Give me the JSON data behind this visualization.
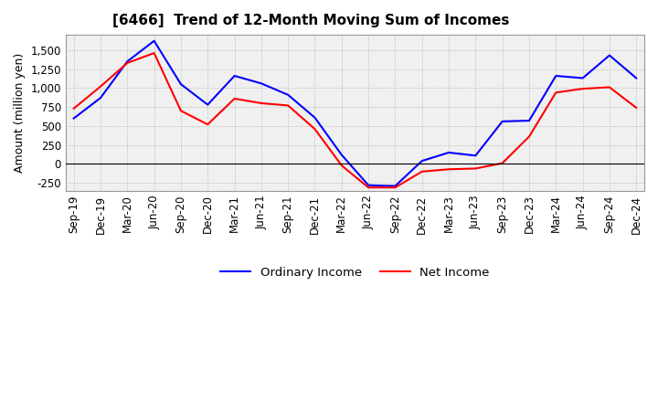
{
  "title": "[6466]  Trend of 12-Month Moving Sum of Incomes",
  "ylabel": "Amount (million yen)",
  "x_labels": [
    "Sep-19",
    "Dec-19",
    "Mar-20",
    "Jun-20",
    "Sep-20",
    "Dec-20",
    "Mar-21",
    "Jun-21",
    "Sep-21",
    "Dec-21",
    "Mar-22",
    "Jun-22",
    "Sep-22",
    "Dec-22",
    "Mar-23",
    "Jun-23",
    "Sep-23",
    "Dec-23",
    "Mar-24",
    "Jun-24",
    "Sep-24",
    "Dec-24"
  ],
  "ordinary_income": [
    600,
    870,
    1350,
    1620,
    1050,
    780,
    1160,
    1060,
    910,
    610,
    120,
    -280,
    -290,
    40,
    150,
    110,
    560,
    570,
    1160,
    1130,
    1430,
    1130
  ],
  "net_income": [
    730,
    1020,
    1330,
    1460,
    700,
    520,
    860,
    800,
    770,
    460,
    -20,
    -310,
    -310,
    -100,
    -70,
    -60,
    10,
    360,
    940,
    990,
    1010,
    740
  ],
  "ordinary_color": "#0000ff",
  "net_color": "#ff0000",
  "ylim": [
    -350,
    1700
  ],
  "yticks": [
    -250,
    0,
    250,
    500,
    750,
    1000,
    1250,
    1500
  ],
  "background_color": "#ffffff",
  "plot_bg_color": "#f0f0f0",
  "grid_color": "#aaaaaa",
  "title_fontsize": 11,
  "label_fontsize": 9,
  "tick_fontsize": 8.5
}
